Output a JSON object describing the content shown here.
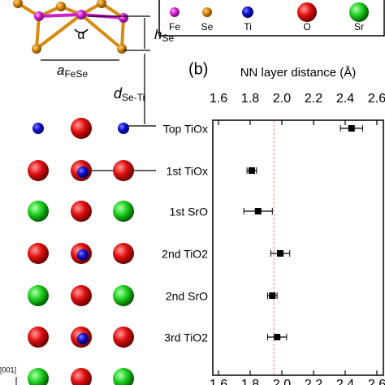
{
  "chart_data": {
    "type": "errorbar",
    "panel_label": "(b)",
    "title": "NN layer distance (Å)",
    "categories": [
      "Top TiOx",
      "1st TiOx",
      "1st SrO",
      "2nd TiO2",
      "2nd SrO",
      "3rd TiO2"
    ],
    "values": [
      2.44,
      1.81,
      1.85,
      1.99,
      1.94,
      1.97
    ],
    "errors": [
      0.07,
      0.03,
      0.09,
      0.06,
      0.03,
      0.06
    ],
    "color": "#000000",
    "ref_line": 1.95,
    "ref_color": "#f08080",
    "xlim": [
      1.6,
      2.6
    ],
    "xticks": [
      1.6,
      1.8,
      {
        "value": 2,
        "label": "2.0"
      },
      2.2,
      2.4,
      2.6
    ]
  },
  "diagram": {
    "legend": [
      "Fe",
      "Se",
      "Ti",
      "O",
      "Sr"
    ],
    "angle": "α",
    "h_label": "h",
    "h_sub": "Se",
    "a_label": "a",
    "a_sub": "FeSe",
    "d_label": "d",
    "d_sub": "Se-Ti",
    "direction": "[001]"
  }
}
